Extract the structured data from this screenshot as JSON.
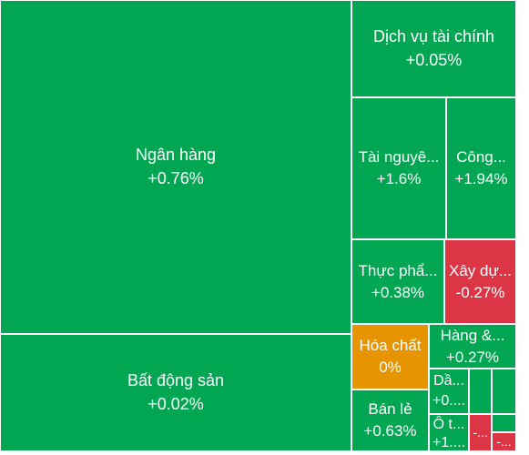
{
  "colors": {
    "positive": "#00a651",
    "negative": "#dc3545",
    "unchanged": "#e69500"
  },
  "tiles": [
    {
      "id": "ngan-hang",
      "name": "Ngân hàng",
      "change": "+0.76%",
      "status": "positive"
    },
    {
      "id": "bat-dong-san",
      "name": "Bất động sản",
      "change": "+0.02%",
      "status": "positive"
    },
    {
      "id": "dich-vu-tai-chinh",
      "name": "Dịch vụ tài chính",
      "change": "+0.05%",
      "status": "positive"
    },
    {
      "id": "tai-nguyen",
      "name": "Tài nguyê...",
      "change": "+1.6%",
      "status": "positive"
    },
    {
      "id": "cong",
      "name": "Công...",
      "change": "+1.94%",
      "status": "positive"
    },
    {
      "id": "thuc-pham",
      "name": "Thực phẩ...",
      "change": "+0.38%",
      "status": "positive"
    },
    {
      "id": "xay-dung",
      "name": "Xây dự...",
      "change": "-0.27%",
      "status": "negative"
    },
    {
      "id": "hoa-chat",
      "name": "Hóa chất",
      "change": "0%",
      "status": "unchanged"
    },
    {
      "id": "hang",
      "name": "Hàng &...",
      "change": "+0.27%",
      "status": "positive"
    },
    {
      "id": "ban-le",
      "name": "Bán lẻ",
      "change": "+0.63%",
      "status": "positive"
    },
    {
      "id": "dau",
      "name": "Dầ...",
      "change": "+0....",
      "status": "positive"
    },
    {
      "id": "o-to",
      "name": "Ô t...",
      "change": "+1....",
      "status": "positive"
    },
    {
      "id": "small-a",
      "name": "",
      "change": "",
      "status": "positive"
    },
    {
      "id": "small-b",
      "name": "",
      "change": "",
      "status": "positive"
    },
    {
      "id": "small-c",
      "name": "",
      "change": "-...",
      "status": "negative"
    },
    {
      "id": "small-d",
      "name": "",
      "change": "",
      "status": "positive"
    },
    {
      "id": "small-e",
      "name": "",
      "change": "-...",
      "status": "negative"
    }
  ]
}
